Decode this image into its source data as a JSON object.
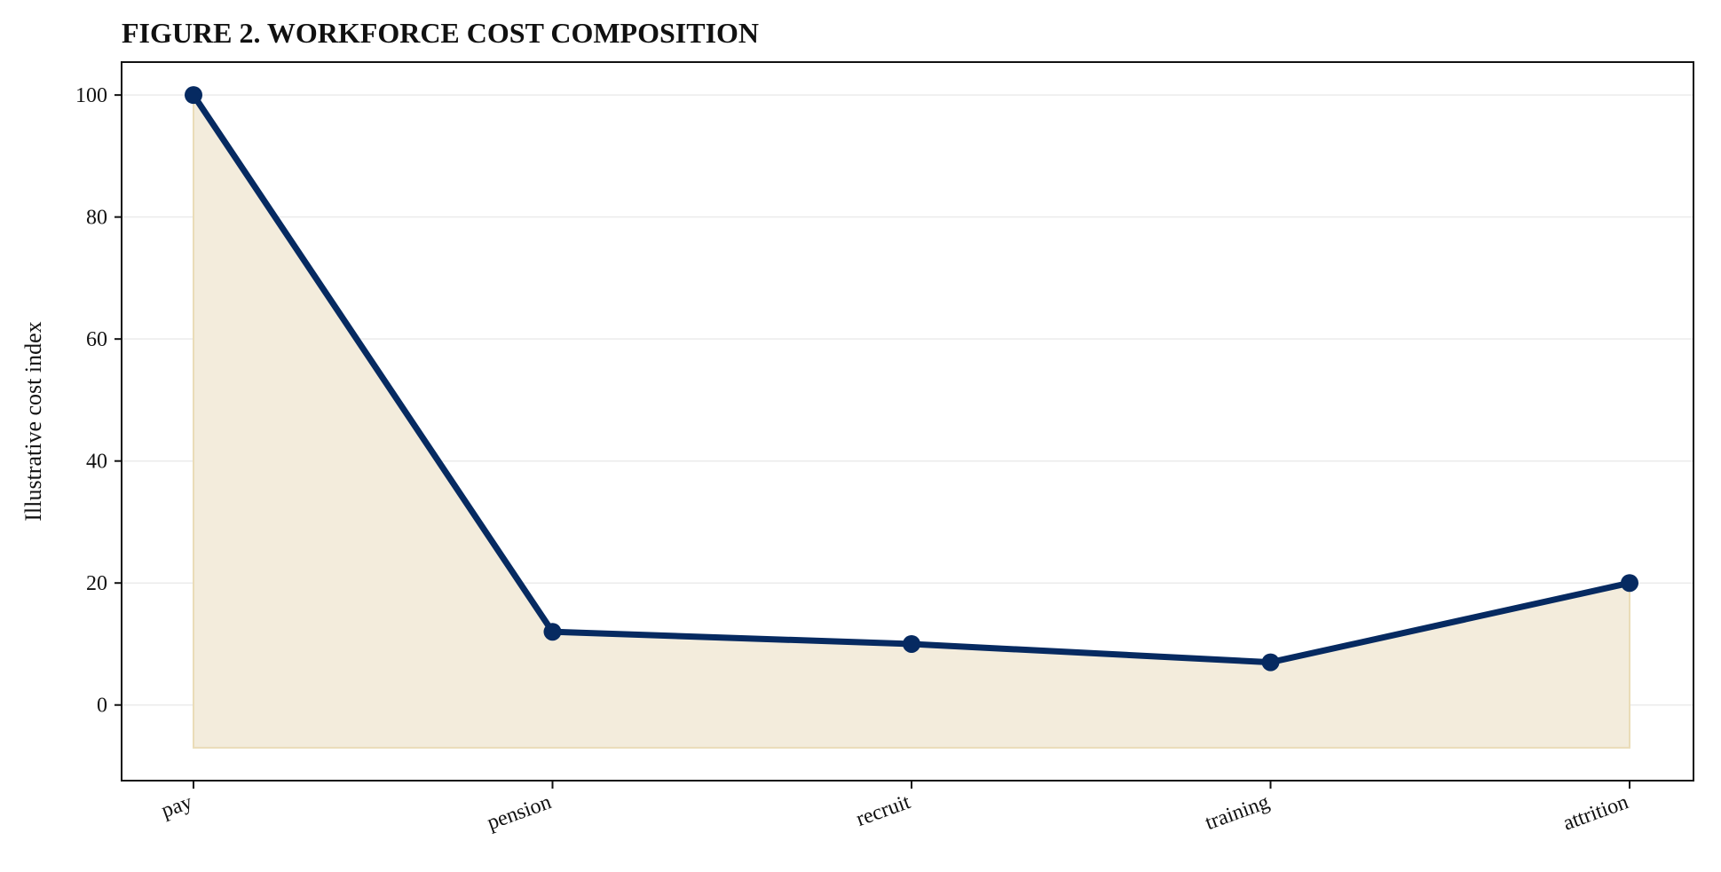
{
  "chart_data": {
    "type": "area",
    "title": "FIGURE 2. WORKFORCE COST COMPOSITION",
    "xlabel": "",
    "ylabel": "Illustrative cost index",
    "categories": [
      "pay",
      "pension",
      "recruit",
      "training",
      "attrition"
    ],
    "values": [
      100,
      12,
      10,
      7,
      20
    ],
    "fill_baseline": -7,
    "ylim": [
      -12.4,
      105.4
    ],
    "yticks": [
      0,
      20,
      40,
      60,
      80,
      100
    ],
    "grid": "horizontal",
    "colors": {
      "line": "#062a61",
      "fill": "#f3ecdc",
      "fill_edge": "#eadcb8",
      "grid": "#ebebeb"
    }
  }
}
